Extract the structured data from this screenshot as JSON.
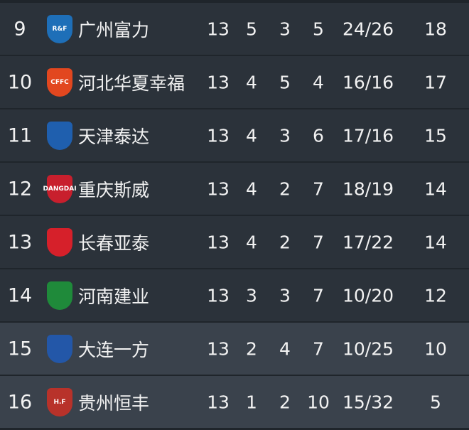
{
  "rows": [
    {
      "rank": "9",
      "team": "广州富力",
      "logo_text": "R&F",
      "logo_color": "#1e6fb8",
      "played": "13",
      "won": "5",
      "drawn": "3",
      "lost": "5",
      "goals": "24/26",
      "points": "18",
      "relegation": false
    },
    {
      "rank": "10",
      "team": "河北华夏幸福",
      "logo_text": "CFFC",
      "logo_color": "#e2471f",
      "played": "13",
      "won": "4",
      "drawn": "5",
      "lost": "4",
      "goals": "16/16",
      "points": "17",
      "relegation": false
    },
    {
      "rank": "11",
      "team": "天津泰达",
      "logo_text": "",
      "logo_color": "#1f5fae",
      "played": "13",
      "won": "4",
      "drawn": "3",
      "lost": "6",
      "goals": "17/16",
      "points": "15",
      "relegation": false
    },
    {
      "rank": "12",
      "team": "重庆斯威",
      "logo_text": "DANGDAI",
      "logo_color": "#c81f2d",
      "played": "13",
      "won": "4",
      "drawn": "2",
      "lost": "7",
      "goals": "18/19",
      "points": "14",
      "relegation": false
    },
    {
      "rank": "13",
      "team": "长春亚泰",
      "logo_text": "",
      "logo_color": "#d6202a",
      "played": "13",
      "won": "4",
      "drawn": "2",
      "lost": "7",
      "goals": "17/22",
      "points": "14",
      "relegation": false
    },
    {
      "rank": "14",
      "team": "河南建业",
      "logo_text": "",
      "logo_color": "#1f8a3a",
      "played": "13",
      "won": "3",
      "drawn": "3",
      "lost": "7",
      "goals": "10/20",
      "points": "12",
      "relegation": false
    },
    {
      "rank": "15",
      "team": "大连一方",
      "logo_text": "",
      "logo_color": "#2357a8",
      "played": "13",
      "won": "2",
      "drawn": "4",
      "lost": "7",
      "goals": "10/25",
      "points": "10",
      "relegation": true
    },
    {
      "rank": "16",
      "team": "贵州恒丰",
      "logo_text": "H.F",
      "logo_color": "#b8322a",
      "played": "13",
      "won": "1",
      "drawn": "2",
      "lost": "10",
      "goals": "15/32",
      "points": "5",
      "relegation": true
    }
  ]
}
